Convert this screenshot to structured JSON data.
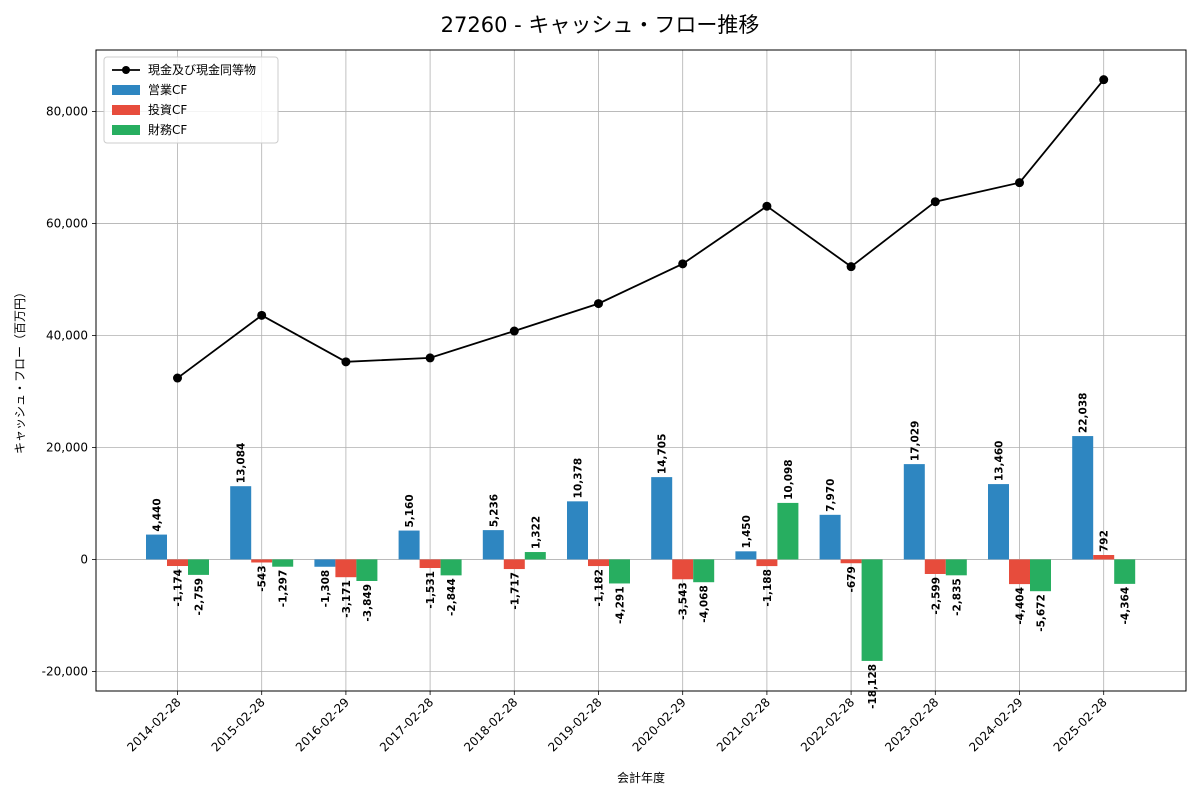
{
  "chart_data": {
    "type": "bar",
    "title": "27260 - キャッシュ・フロー推移",
    "xlabel": "会計年度",
    "ylabel": "キャッシュ・フロー（百万円）",
    "ylim": [
      -23500,
      91000
    ],
    "yticks": [
      -20000,
      0,
      20000,
      40000,
      60000,
      80000
    ],
    "ytick_labels": [
      "-20,000",
      "0",
      "20,000",
      "40,000",
      "60,000",
      "80,000"
    ],
    "grid": true,
    "legend_position": "top-left",
    "categories": [
      "2014-02-28",
      "2015-02-28",
      "2016-02-29",
      "2017-02-28",
      "2018-02-28",
      "2019-02-28",
      "2020-02-29",
      "2021-02-28",
      "2022-02-28",
      "2023-02-28",
      "2024-02-29",
      "2025-02-28"
    ],
    "series": [
      {
        "name": "営業CF",
        "kind": "bar",
        "color": "#2e86c1",
        "values": [
          4440,
          13084,
          -1308,
          5160,
          5236,
          10378,
          14705,
          1450,
          7970,
          17029,
          13460,
          22038
        ],
        "labels": [
          "4,440",
          "13,084",
          "-1,308",
          "5,160",
          "5,236",
          "10,378",
          "14,705",
          "1,450",
          "7,970",
          "17,029",
          "13,460",
          "22,038"
        ]
      },
      {
        "name": "投資CF",
        "kind": "bar",
        "color": "#e74c3c",
        "values": [
          -1174,
          -543,
          -3171,
          -1531,
          -1717,
          -1182,
          -3543,
          -1188,
          -679,
          -2599,
          -4404,
          792
        ],
        "labels": [
          "-1,174",
          "-543",
          "-3,171",
          "-1,531",
          "-1,717",
          "-1,182",
          "-3,543",
          "-1,188",
          "-679",
          "-2,599",
          "-4,404",
          "792"
        ]
      },
      {
        "name": "財務CF",
        "kind": "bar",
        "color": "#27ae60",
        "values": [
          -2759,
          -1297,
          -3849,
          -2844,
          1322,
          -4291,
          -4068,
          10098,
          -18128,
          -2835,
          -5672,
          -4364
        ],
        "labels": [
          "-2,759",
          "-1,297",
          "-3,849",
          "-2,844",
          "1,322",
          "-4,291",
          "-4,068",
          "10,098",
          "-18,128",
          "-2,835",
          "-5,672",
          "-4,364"
        ]
      },
      {
        "name": "現金及び現金同等物",
        "kind": "line",
        "color": "#000000",
        "values": [
          32400,
          43600,
          35300,
          36000,
          40800,
          45700,
          52800,
          63100,
          52300,
          63900,
          67300,
          85700
        ]
      }
    ]
  }
}
